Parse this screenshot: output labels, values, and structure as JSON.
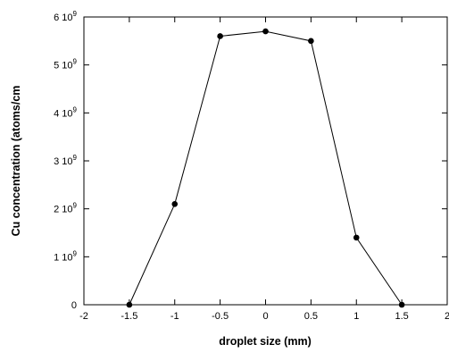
{
  "chart_data": {
    "type": "line",
    "title": "",
    "xlabel": "droplet size (mm)",
    "ylabel": "Cu concentration (atoms/cm",
    "xlim": [
      -2,
      2
    ],
    "ylim": [
      0,
      6000000000
    ],
    "grid": false,
    "legend": "none",
    "line_color": "#000000",
    "x_ticks": [
      {
        "value": -2,
        "label": "-2"
      },
      {
        "value": -1.5,
        "label": "-1.5"
      },
      {
        "value": -1,
        "label": "-1"
      },
      {
        "value": -0.5,
        "label": "-0.5"
      },
      {
        "value": 0,
        "label": "0"
      },
      {
        "value": 0.5,
        "label": "0.5"
      },
      {
        "value": 1,
        "label": "1"
      },
      {
        "value": 1.5,
        "label": "1.5"
      },
      {
        "value": 2,
        "label": "2"
      }
    ],
    "y_ticks": [
      {
        "value": 0,
        "label": "0",
        "mantissa": "0",
        "exponent": ""
      },
      {
        "value": 1000000000,
        "label": "1 10^9",
        "mantissa": "1 10",
        "exponent": "9"
      },
      {
        "value": 2000000000,
        "label": "2 10^9",
        "mantissa": "2 10",
        "exponent": "9"
      },
      {
        "value": 3000000000,
        "label": "3 10^9",
        "mantissa": "3 10",
        "exponent": "9"
      },
      {
        "value": 4000000000,
        "label": "4 10^9",
        "mantissa": "4 10",
        "exponent": "9"
      },
      {
        "value": 5000000000,
        "label": "5 10^9",
        "mantissa": "5 10",
        "exponent": "9"
      },
      {
        "value": 6000000000,
        "label": "6 10^9",
        "mantissa": "6 10",
        "exponent": "9"
      }
    ],
    "series": [
      {
        "x": [
          -1.5,
          -1,
          -0.5,
          0,
          0.5,
          1,
          1.5
        ],
        "y": [
          0,
          2100000000,
          5600000000,
          5700000000,
          5500000000,
          1400000000,
          0
        ]
      }
    ]
  }
}
